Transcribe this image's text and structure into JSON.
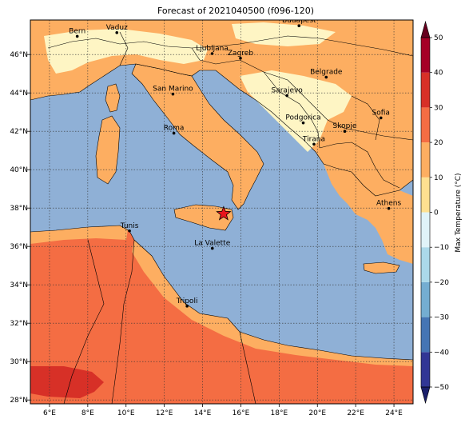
{
  "title": "Forecast of 2021040500 (f096-120)",
  "colorbar": {
    "label": "Max Temperature (°C)",
    "ticks": [
      "−50",
      "−40",
      "−30",
      "−20",
      "−10",
      "0",
      "10",
      "20",
      "30",
      "40",
      "50"
    ],
    "colors": [
      "#313695",
      "#4575b4",
      "#74add1",
      "#abd9e9",
      "#e0f3f8",
      "#fee090",
      "#fdae61",
      "#f46d43",
      "#d73027",
      "#a50026"
    ],
    "under_color": "#1b1f6b",
    "over_color": "#67001f"
  },
  "axes": {
    "lon_ticks": [
      "6°E",
      "8°E",
      "10°E",
      "12°E",
      "14°E",
      "16°E",
      "18°E",
      "20°E",
      "22°E",
      "24°E"
    ],
    "lat_ticks": [
      "28°N",
      "30°N",
      "32°N",
      "34°N",
      "36°N",
      "38°N",
      "40°N",
      "42°N",
      "44°N",
      "46°N"
    ],
    "lon_range": [
      5,
      25
    ],
    "lat_range": [
      27.8,
      47.8
    ],
    "grid": true
  },
  "sea_color": "#8fb0d6",
  "cities": [
    {
      "name": "Bern",
      "lon": 7.45,
      "lat": 46.95
    },
    {
      "name": "Vaduz",
      "lon": 9.52,
      "lat": 47.14
    },
    {
      "name": "Budapest",
      "lon": 19.04,
      "lat": 47.5
    },
    {
      "name": "Ljubljana",
      "lon": 14.5,
      "lat": 46.05
    },
    {
      "name": "Zagreb",
      "lon": 15.98,
      "lat": 45.81
    },
    {
      "name": "Belgrade",
      "lon": 20.46,
      "lat": 44.82
    },
    {
      "name": "San Marino",
      "lon": 12.45,
      "lat": 43.94
    },
    {
      "name": "Sarajevo",
      "lon": 18.41,
      "lat": 43.86
    },
    {
      "name": "Sofia",
      "lon": 23.32,
      "lat": 42.7
    },
    {
      "name": "Podgorica",
      "lon": 19.26,
      "lat": 42.44
    },
    {
      "name": "Skopje",
      "lon": 21.43,
      "lat": 42.0
    },
    {
      "name": "Roma",
      "lon": 12.5,
      "lat": 41.9
    },
    {
      "name": "Tirana",
      "lon": 19.82,
      "lat": 41.33
    },
    {
      "name": "Athens",
      "lon": 23.73,
      "lat": 37.98
    },
    {
      "name": "Tunis",
      "lon": 10.18,
      "lat": 36.81
    },
    {
      "name": "La Valette",
      "lon": 14.51,
      "lat": 35.9
    },
    {
      "name": "Tripoli",
      "lon": 13.19,
      "lat": 32.89
    }
  ],
  "marker": {
    "lon": 15.1,
    "lat": 37.7,
    "symbol": "star",
    "color": "#e8141c"
  }
}
